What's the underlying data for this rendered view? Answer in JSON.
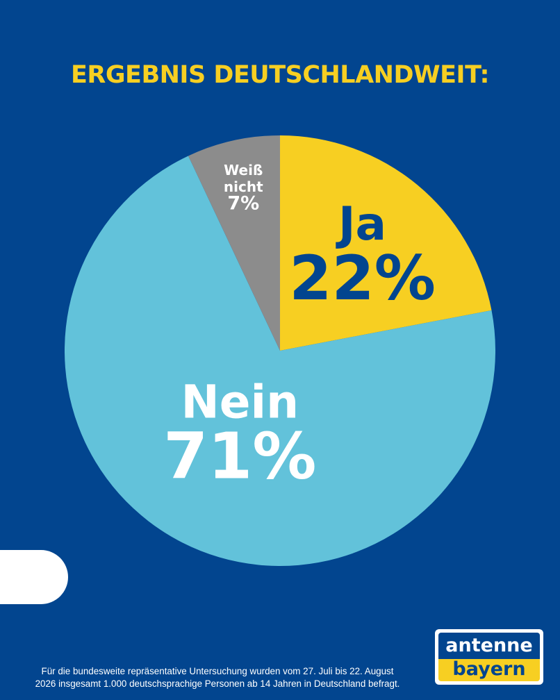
{
  "title": "ERGEBNIS DEUTSCHLANDWEIT:",
  "chart_data": {
    "type": "pie",
    "title": "ERGEBNIS DEUTSCHLANDWEIT:",
    "slices": [
      {
        "name": "Ja",
        "label_lines": [
          "Ja"
        ],
        "value": 22,
        "value_label": "22%",
        "color": "#f7cf22",
        "text_color": "#02458f"
      },
      {
        "name": "Nein",
        "label_lines": [
          "Nein"
        ],
        "value": 71,
        "value_label": "71%",
        "color": "#62c2da",
        "text_color": "#ffffff"
      },
      {
        "name": "Weiß nicht",
        "label_lines": [
          "Weiß",
          "nicht"
        ],
        "value": 7,
        "value_label": "7%",
        "color": "#8c8c8c",
        "text_color": "#ffffff"
      }
    ]
  },
  "footnote": {
    "line1": "Für die bundesweite repräsentative Untersuchung wurden vom 27. Juli bis 22. August",
    "line2": "2026 insgesamt 1.000 deutschsprachige Personen ab 14 Jahren in Deutschland befragt."
  },
  "logo": {
    "line1": "antenne",
    "line2": "bayern"
  },
  "colors": {
    "background": "#02458f",
    "accent": "#f7cf22"
  }
}
